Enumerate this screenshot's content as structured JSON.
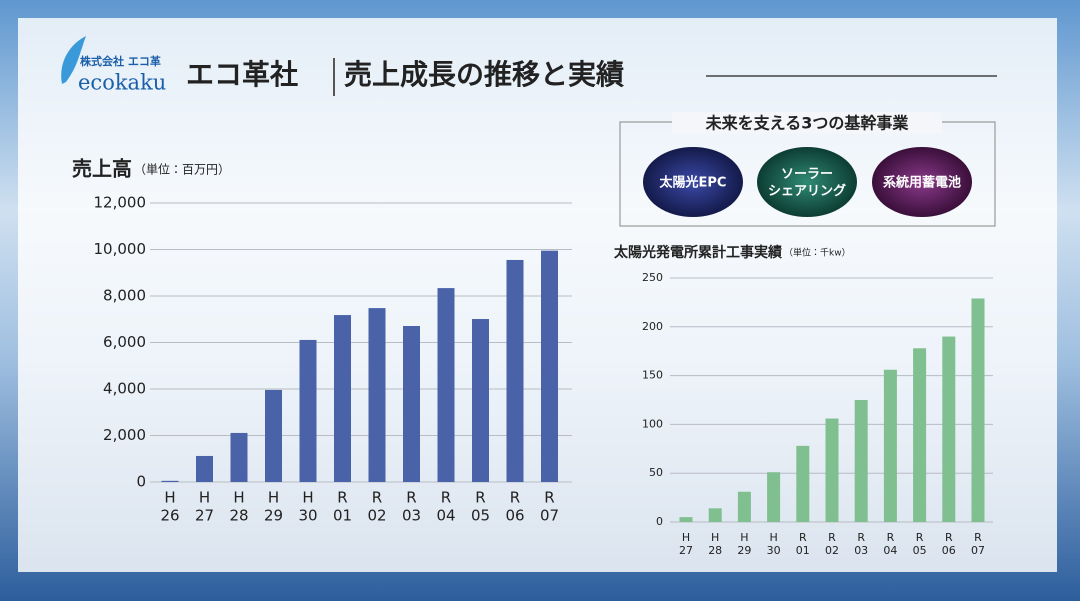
{
  "header": {
    "company": "株式会社 エコ革",
    "logo": "ecokaku",
    "title_left": "エコ革社",
    "title_right": "売上成長の推移と実績"
  },
  "business": {
    "title": "未来を支える3つの基幹事業",
    "items": [
      [
        "太陽光EPC"
      ],
      [
        "ソーラー",
        "シェアリング"
      ],
      [
        "系統用蓄電池"
      ]
    ]
  },
  "chart_data": [
    {
      "type": "bar",
      "title": "売上高",
      "subtitle": "（単位：百万円）",
      "color": "#4a62a8",
      "grid": true,
      "categories": [
        [
          "H",
          "26"
        ],
        [
          "H",
          "27"
        ],
        [
          "H",
          "28"
        ],
        [
          "H",
          "29"
        ],
        [
          "H",
          "30"
        ],
        [
          "R",
          "01"
        ],
        [
          "R",
          "02"
        ],
        [
          "R",
          "03"
        ],
        [
          "R",
          "04"
        ],
        [
          "R",
          "05"
        ],
        [
          "R",
          "06"
        ],
        [
          "R",
          "07"
        ]
      ],
      "values": [
        50,
        1120,
        2110,
        3960,
        6110,
        7180,
        7480,
        6710,
        8340,
        7010,
        9550,
        9950
      ],
      "ylim": [
        0,
        12000
      ],
      "yticks": [
        0,
        {
          "value": 2000,
          "label": "2,000"
        },
        {
          "value": 4000,
          "label": "4,000"
        },
        {
          "value": 6000,
          "label": "6,000"
        },
        {
          "value": 8000,
          "label": "8,000"
        },
        {
          "value": 10000,
          "label": "10,000"
        },
        {
          "value": 12000,
          "label": "12,000"
        }
      ]
    },
    {
      "type": "bar",
      "title": "太陽光発電所累計工事実績",
      "subtitle": "（単位：千kw）",
      "color": "#80bf8f",
      "grid": true,
      "categories": [
        [
          "H",
          "27"
        ],
        [
          "H",
          "28"
        ],
        [
          "H",
          "29"
        ],
        [
          "H",
          "30"
        ],
        [
          "R",
          "01"
        ],
        [
          "R",
          "02"
        ],
        [
          "R",
          "03"
        ],
        [
          "R",
          "04"
        ],
        [
          "R",
          "05"
        ],
        [
          "R",
          "06"
        ],
        [
          "R",
          "07"
        ]
      ],
      "values": [
        5,
        14,
        31,
        51,
        78,
        106,
        125,
        156,
        178,
        190,
        229
      ],
      "ylim": [
        0,
        250
      ],
      "yticks": [
        0,
        50,
        100,
        150,
        200,
        250
      ]
    }
  ]
}
